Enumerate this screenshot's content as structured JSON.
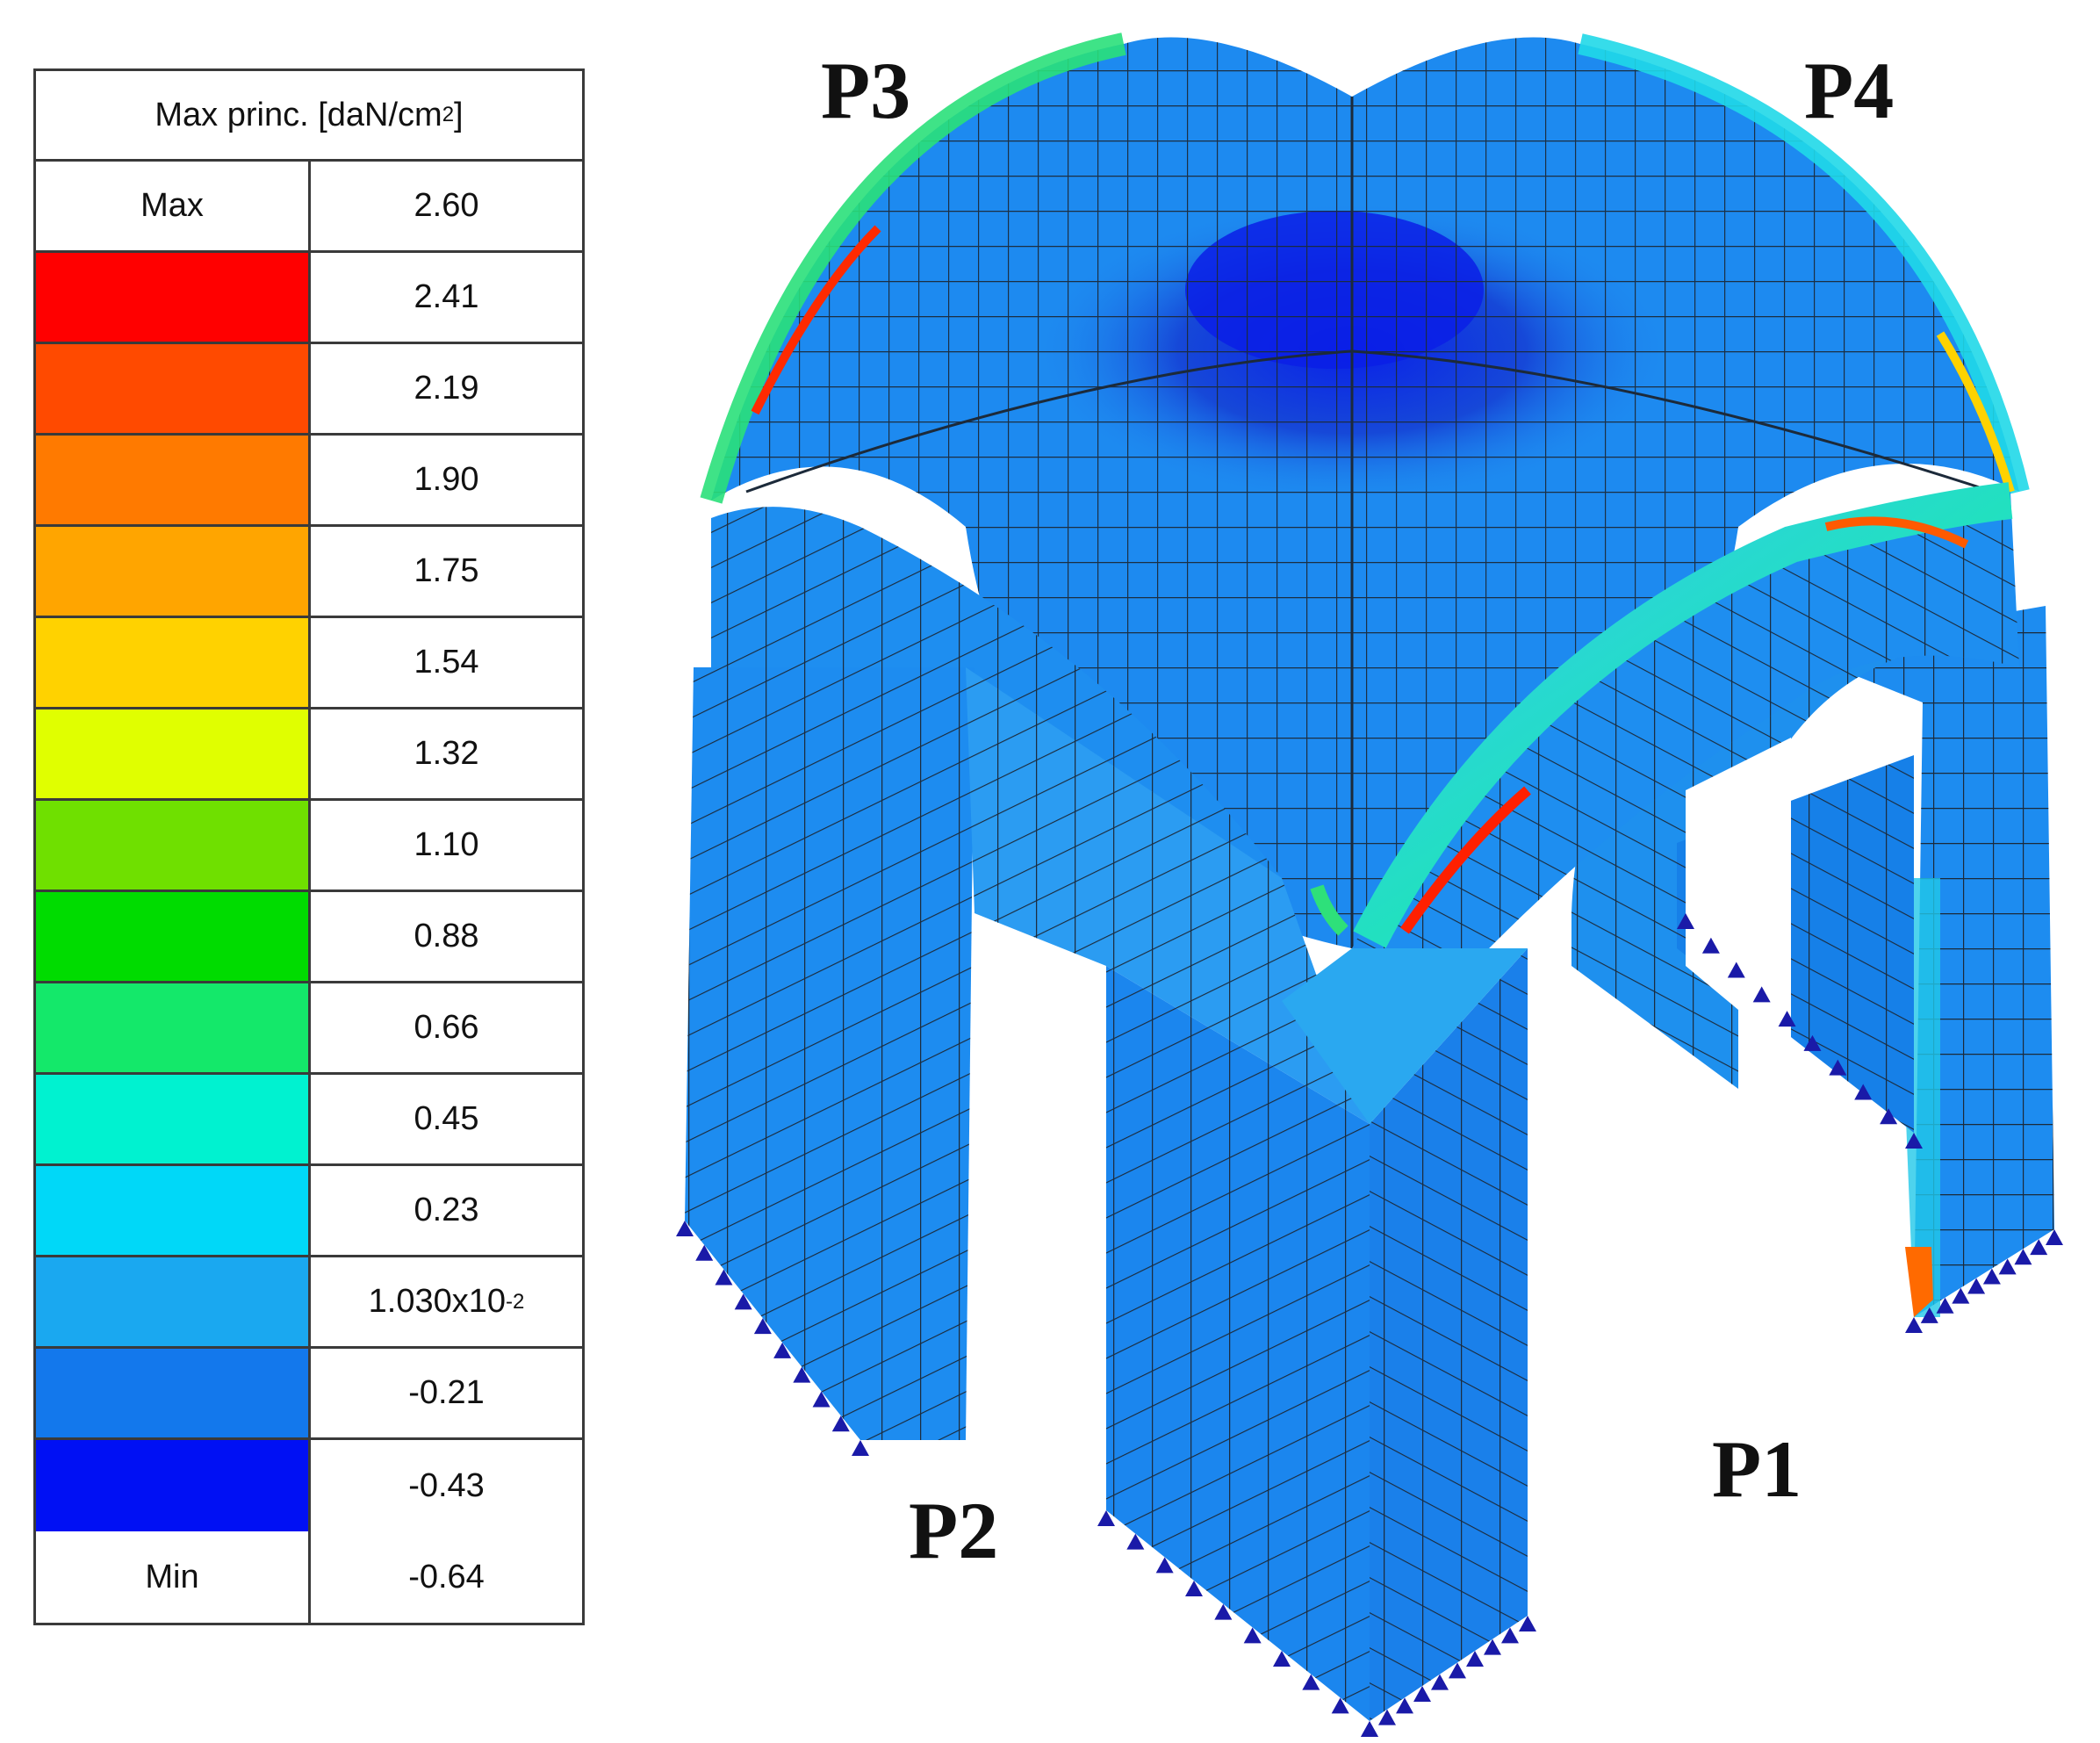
{
  "legend": {
    "title": "Max princ. [daN/cm",
    "title_sup": "2",
    "title_end": "]",
    "max_label": "Max",
    "max_value": "2.60",
    "min_label": "Min",
    "min_value": "-0.64",
    "bands": [
      {
        "value": "2.41",
        "color": "#ff0000"
      },
      {
        "value": "2.19",
        "color": "#ff4a00"
      },
      {
        "value": "1.90",
        "color": "#ff7a00"
      },
      {
        "value": "1.75",
        "color": "#ffa500"
      },
      {
        "value": "1.54",
        "color": "#ffd200"
      },
      {
        "value": "1.32",
        "color": "#e0ff00"
      },
      {
        "value": "1.10",
        "color": "#6fe000"
      },
      {
        "value": "0.88",
        "color": "#00dc00"
      },
      {
        "value": "0.66",
        "color": "#14e86a"
      },
      {
        "value": "0.45",
        "color": "#00f2d0"
      },
      {
        "value": "0.23",
        "color": "#00d8f8"
      },
      {
        "value": "1.030x10",
        "value_sup": "-2",
        "color": "#1aa8f0"
      },
      {
        "value": "-0.21",
        "color": "#1378ec"
      },
      {
        "value": "-0.43",
        "color": "#0010f4"
      }
    ]
  },
  "labels": {
    "p1": "P1",
    "p2": "P2",
    "p3": "P3",
    "p4": "P4"
  },
  "colors": {
    "base_blue": "#1d8cf0",
    "dark_blue": "#1346d8",
    "deep_blue": "#0a2ee0",
    "light_cyan": "#2ec8f2",
    "mesh": "#1c2a3a",
    "support": "#1a1aa8"
  }
}
